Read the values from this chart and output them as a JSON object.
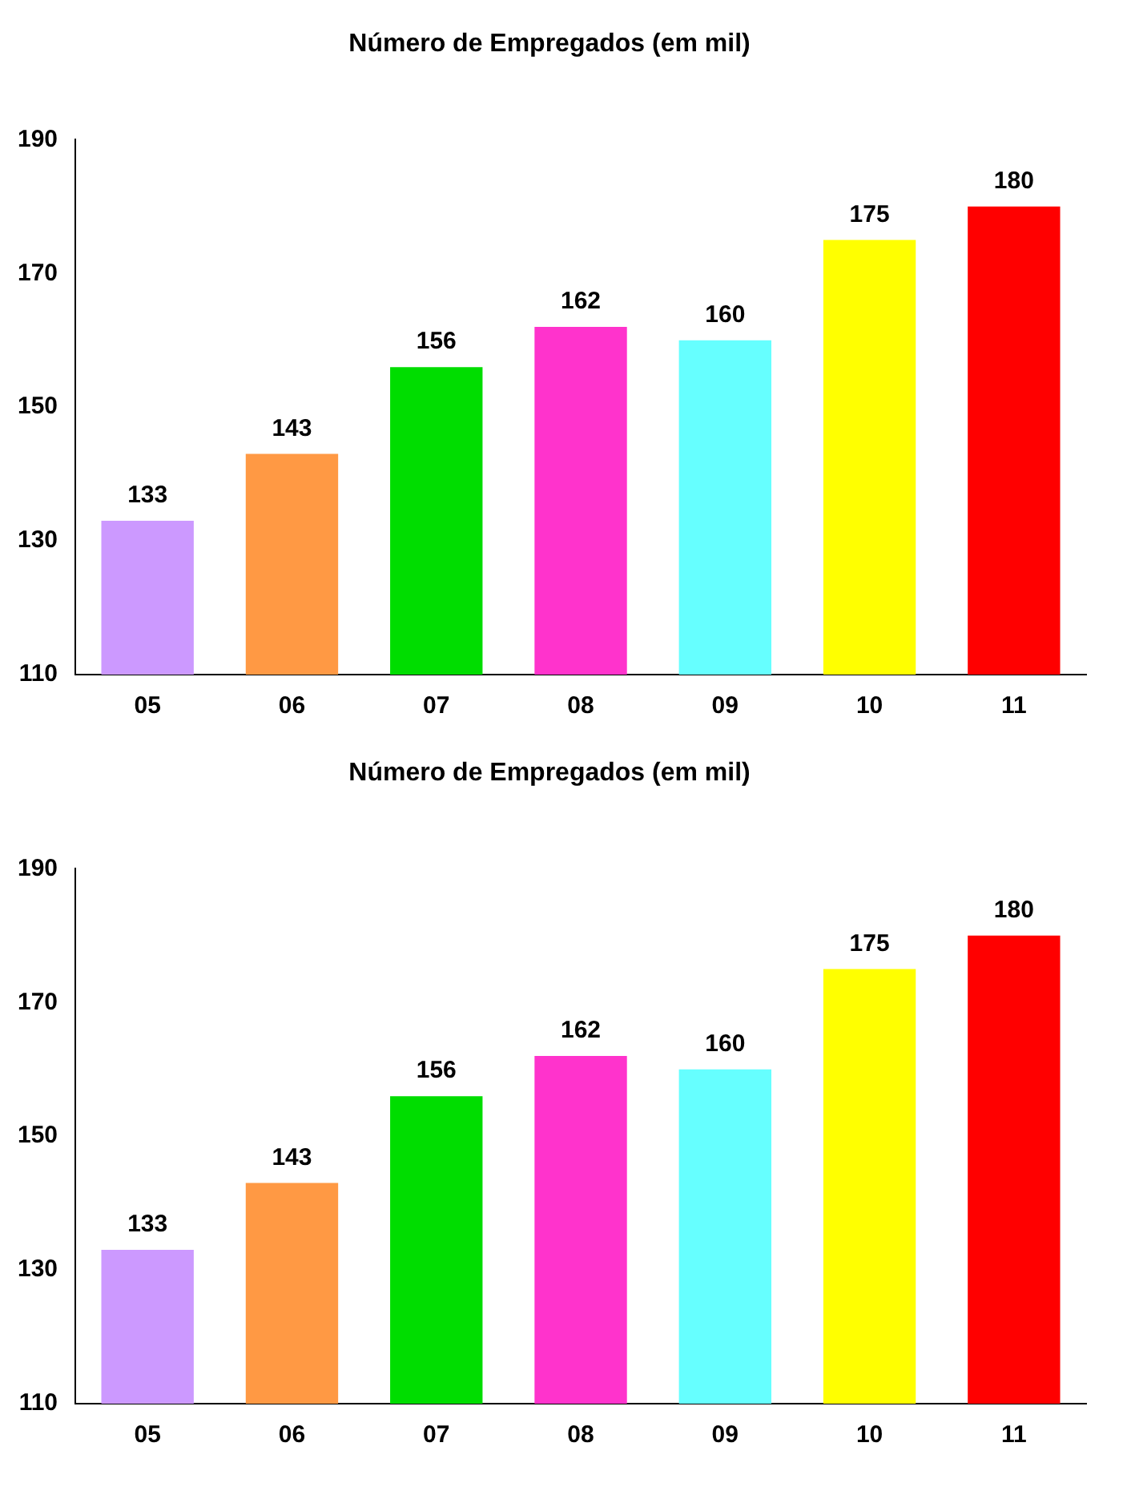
{
  "chart_data": [
    {
      "type": "bar",
      "title": "Número de Empregados (em mil)",
      "categories": [
        "05",
        "06",
        "07",
        "08",
        "09",
        "10",
        "11"
      ],
      "values": [
        133,
        143,
        156,
        162,
        160,
        175,
        180
      ],
      "colors": [
        "#cc99ff",
        "#ff9944",
        "#00dd00",
        "#ff33cc",
        "#66ffff",
        "#ffff00",
        "#ff0000"
      ],
      "ylim": [
        110,
        190
      ],
      "yticks": [
        110,
        130,
        150,
        170,
        190
      ],
      "data_labels": true,
      "grid": false,
      "legend": false
    },
    {
      "type": "bar",
      "title": "Número de Empregados (em mil)",
      "categories": [
        "05",
        "06",
        "07",
        "08",
        "09",
        "10",
        "11"
      ],
      "values": [
        133,
        143,
        156,
        162,
        160,
        175,
        180
      ],
      "colors": [
        "#cc99ff",
        "#ff9944",
        "#00dd00",
        "#ff33cc",
        "#66ffff",
        "#ffff00",
        "#ff0000"
      ],
      "ylim": [
        110,
        190
      ],
      "yticks": [
        110,
        130,
        150,
        170,
        190
      ],
      "data_labels": true,
      "grid": false,
      "legend": false
    }
  ]
}
